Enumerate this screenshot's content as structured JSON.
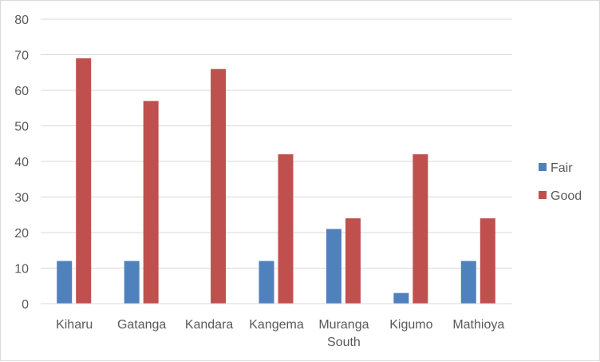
{
  "chart_data": {
    "type": "bar",
    "categories": [
      [
        "Kiharu"
      ],
      [
        "Gatanga"
      ],
      [
        "Kandara"
      ],
      [
        "Kangema"
      ],
      [
        "Muranga",
        "South"
      ],
      [
        "Kigumo"
      ],
      [
        "Mathioya"
      ]
    ],
    "series": [
      {
        "name": "Fair",
        "color": "#4f81bd",
        "values": [
          12,
          12,
          0,
          12,
          21,
          3,
          12
        ]
      },
      {
        "name": "Good",
        "color": "#c0504d",
        "values": [
          69,
          57,
          66,
          42,
          24,
          42,
          24
        ]
      }
    ],
    "ylim": [
      0,
      80
    ],
    "yticks": [
      0,
      10,
      20,
      30,
      40,
      50,
      60,
      70,
      80
    ],
    "grid": true,
    "legend_position": "right",
    "gridline_color": "#d9d9d9"
  }
}
